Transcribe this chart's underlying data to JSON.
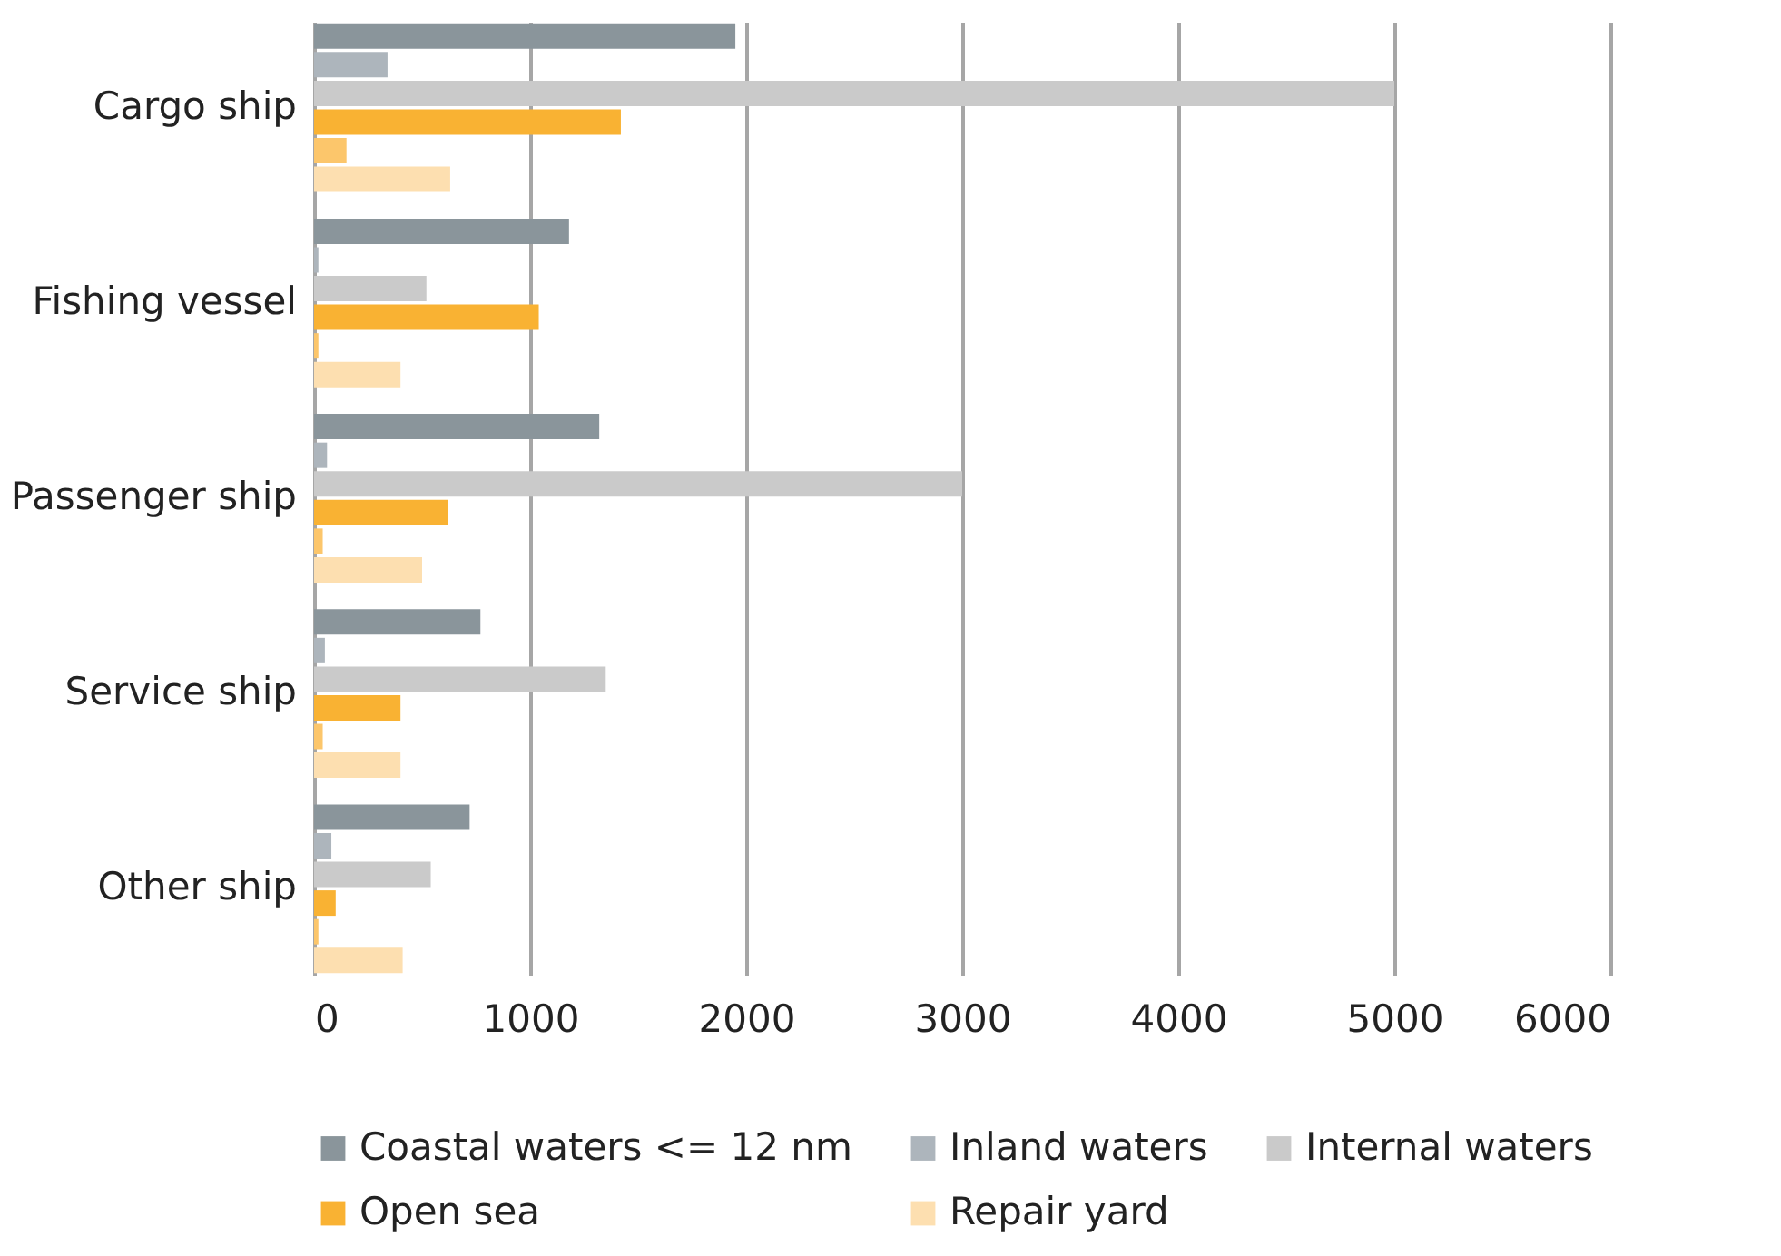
{
  "chart_data": {
    "type": "bar",
    "orientation": "horizontal",
    "categories": [
      "Cargo ship",
      "Fishing vessel",
      "Passenger ship",
      "Service ship",
      "Other ship"
    ],
    "series": [
      {
        "name": "Coastal waters <= 12 nm",
        "color": "#8a959b",
        "values": [
          1950,
          1180,
          1320,
          770,
          720
        ]
      },
      {
        "name": "Inland waters",
        "color": "#adb5bc",
        "values": [
          340,
          20,
          60,
          50,
          80
        ]
      },
      {
        "name": "Internal waters",
        "color": "#cacaca",
        "values": [
          5000,
          520,
          3000,
          1350,
          540
        ]
      },
      {
        "name": "Open sea",
        "color": "#f9b233",
        "values": [
          1420,
          1040,
          620,
          400,
          100
        ]
      },
      {
        "color": "#fcc66b",
        "values": [
          150,
          20,
          40,
          40,
          20
        ]
      },
      {
        "name": "Repair yard",
        "color": "#fddfb0",
        "values": [
          630,
          400,
          500,
          400,
          410
        ]
      }
    ],
    "xlim": [
      0,
      6000
    ],
    "xticks": [
      0,
      1000,
      2000,
      3000,
      4000,
      5000,
      6000
    ],
    "grid": "x",
    "legend": "bottom"
  }
}
